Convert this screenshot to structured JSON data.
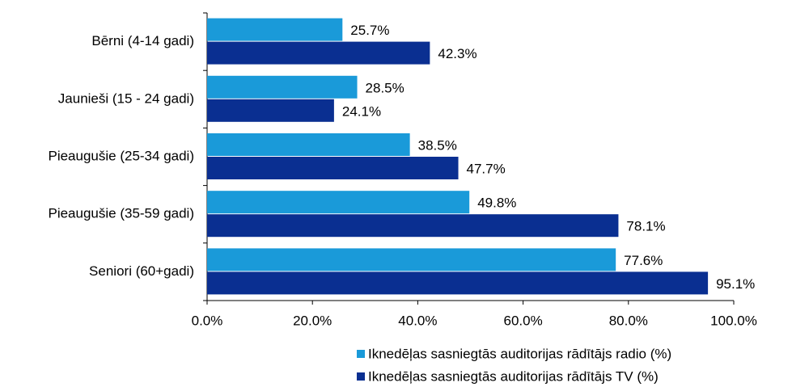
{
  "chart_data": {
    "type": "bar",
    "orientation": "horizontal",
    "categories": [
      "Bērni (4-14 gadi)",
      "Jaunieši (15 - 24 gadi)",
      "Pieaugušie (25-34 gadi)",
      "Pieaugušie (35-59 gadi)",
      "Seniori (60+gadi)"
    ],
    "series": [
      {
        "name": "Iknedēļas sasniegtās auditorijas rādītājs radio (%)",
        "color": "#1a9ad9",
        "values": [
          25.7,
          28.5,
          38.5,
          49.8,
          77.6
        ],
        "value_labels": [
          "25.7%",
          "28.5%",
          "38.5%",
          "49.8%",
          "77.6%"
        ]
      },
      {
        "name": "Iknedēļas sasniegtās auditorijas rādītājs TV (%)",
        "color": "#0a2f91",
        "values": [
          42.3,
          24.1,
          47.7,
          78.1,
          95.1
        ],
        "value_labels": [
          "42.3%",
          "24.1%",
          "47.7%",
          "78.1%",
          "95.1%"
        ]
      }
    ],
    "xlim": [
      0,
      100
    ],
    "xticks": [
      {
        "value": 0,
        "label": "0.0%"
      },
      {
        "value": 20,
        "label": "20.0%"
      },
      {
        "value": 40,
        "label": "40.0%"
      },
      {
        "value": 60,
        "label": "60.0%"
      },
      {
        "value": 80,
        "label": "80.0%"
      },
      {
        "value": 100,
        "label": "100.0%"
      }
    ],
    "legend": "bottom"
  }
}
